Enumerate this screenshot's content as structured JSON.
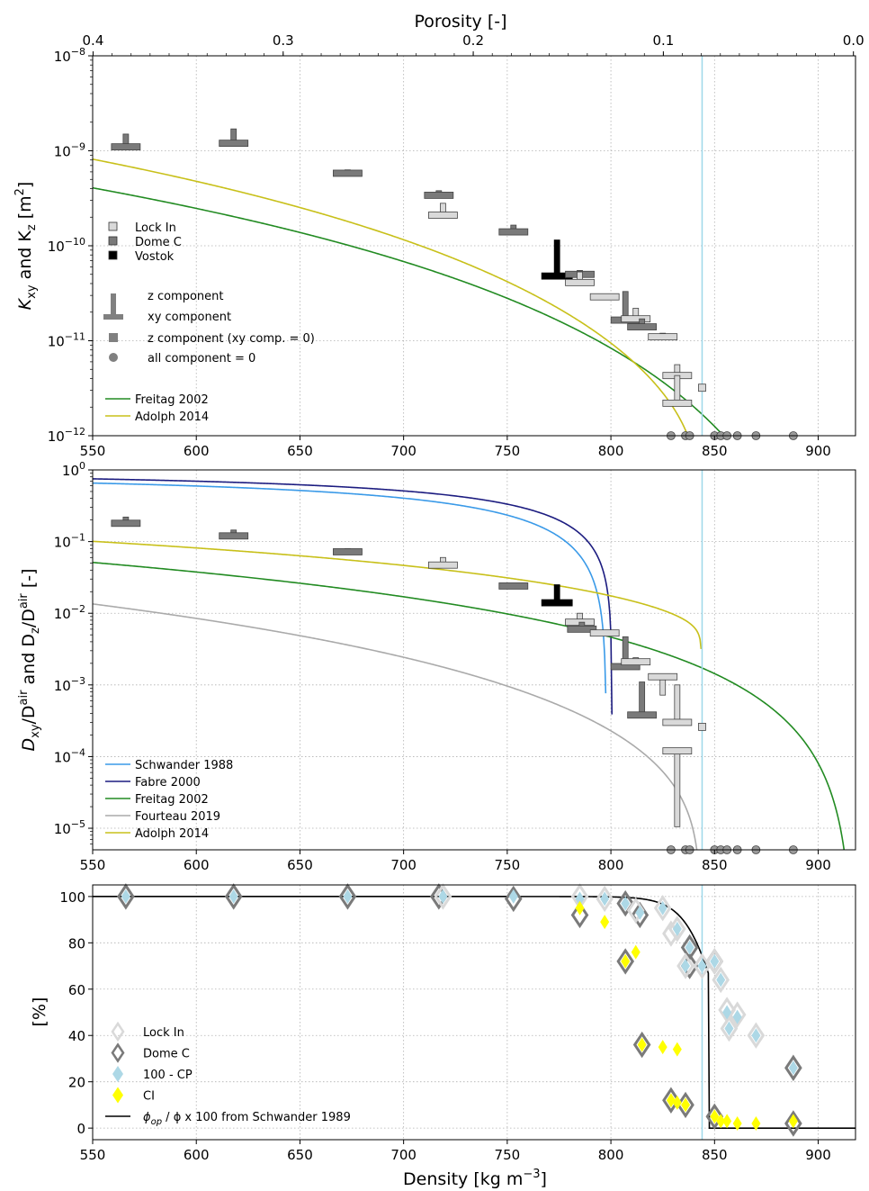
{
  "colors": {
    "lock_in": "#d9d9d9",
    "dome_c": "#7a7a7a",
    "vostok": "#000000",
    "freitag": "#228b22",
    "adolph": "#c8c01a",
    "schwander": "#3a9ae8",
    "fabre": "#1c1c80",
    "fourteau": "#aaaaaa",
    "cp": "#add8e6",
    "ci": "#ffff00",
    "close_off_line": "#9fd8ea"
  },
  "x_axis": {
    "label": "Density [kg m$^{-3}$]",
    "label_text": "Density [kg m",
    "label_sup": "−3",
    "label_end": "]",
    "ticks": [
      "550",
      "600",
      "650",
      "700",
      "750",
      "800",
      "850",
      "900"
    ],
    "range": [
      550,
      918
    ]
  },
  "porosity_axis": {
    "label": "Porosity [-]",
    "ticks": [
      "0.4",
      "0.3",
      "0.2",
      "0.1",
      "0.0"
    ]
  },
  "chart_data": [
    {
      "type": "scatter",
      "panel": "K",
      "ylabel_parts": [
        "K",
        "xy",
        " and K",
        "z",
        " [m",
        "2",
        "]"
      ],
      "yscale": "log",
      "ylim": [
        1e-12,
        1e-08
      ],
      "ytick_labels": [
        [
          "10",
          "−8"
        ],
        [
          "10",
          "−9"
        ],
        [
          "10",
          "−10"
        ],
        [
          "10",
          "−11"
        ],
        [
          "10",
          "−12"
        ]
      ],
      "legend_sites": [
        "Lock In",
        "Dome C",
        "Vostok"
      ],
      "legend_components": [
        "z component",
        "xy component",
        "z component (xy comp. = 0)",
        "all component = 0"
      ],
      "legend_models": [
        "Freitag 2002",
        "Adolph 2014"
      ],
      "tees": [
        {
          "site": "dome_c",
          "density": 566,
          "xy": 1.1e-09,
          "z": 1.5e-09
        },
        {
          "site": "dome_c",
          "density": 618,
          "xy": 1.2e-09,
          "z": 1.7e-09
        },
        {
          "site": "dome_c",
          "density": 673,
          "xy": 5.8e-10,
          "z": 6.3e-10
        },
        {
          "site": "dome_c",
          "density": 717,
          "xy": 3.4e-10,
          "z": 3.8e-10
        },
        {
          "site": "lock_in",
          "density": 719,
          "xy": 2.1e-10,
          "z": 2.8e-10
        },
        {
          "site": "dome_c",
          "density": 753,
          "xy": 1.4e-10,
          "z": 1.65e-10
        },
        {
          "site": "vostok",
          "density": 774,
          "xy": 4.8e-11,
          "z": 1.15e-10
        },
        {
          "site": "dome_c",
          "density": 785,
          "xy": 5e-11,
          "z": 5.5e-11
        },
        {
          "site": "lock_in",
          "density": 785,
          "xy": 4.1e-11,
          "z": 5.3e-11
        },
        {
          "site": "lock_in",
          "density": 797,
          "xy": 2.9e-11,
          "z": 3e-11
        },
        {
          "site": "dome_c",
          "density": 807,
          "xy": 1.65e-11,
          "z": 3.3e-11
        },
        {
          "site": "lock_in",
          "density": 812,
          "xy": 1.7e-11,
          "z": 2.2e-11
        },
        {
          "site": "dome_c",
          "density": 815,
          "xy": 1.4e-11,
          "z": 1.7e-11
        },
        {
          "site": "lock_in",
          "density": 825,
          "xy": 1.1e-11,
          "z": 1.2e-11
        },
        {
          "site": "lock_in",
          "density": 832,
          "xy": 4.3e-12,
          "z": 5.6e-12
        },
        {
          "site": "lock_in",
          "density": 832,
          "xy": 2.2e-12,
          "z": 4.3e-12
        }
      ],
      "squares": [
        {
          "site": "lock_in",
          "density": 844,
          "value": 3.2e-12
        }
      ],
      "zeros": [
        829,
        836,
        838,
        850,
        853,
        856,
        861,
        870,
        888
      ],
      "models": [
        {
          "name": "Freitag 2002",
          "color": "freitag",
          "a": 9.16e-09,
          "b": 3.4
        },
        {
          "name": "Adolph 2014",
          "color": "adolph",
          "a": 2.3e-08,
          "b": 3.5,
          "pc": 0.08,
          "e": 0.6
        }
      ]
    },
    {
      "type": "scatter",
      "panel": "D",
      "ylabel_parts": [
        "D",
        "xy",
        "/D",
        "air",
        " and D",
        "z",
        "/D",
        "air",
        " [-]"
      ],
      "yscale": "log",
      "ylim": [
        5e-06,
        1
      ],
      "ytick_labels": [
        [
          "10",
          "0"
        ],
        [
          "10",
          "−1"
        ],
        [
          "10",
          "−2"
        ],
        [
          "10",
          "−3"
        ],
        [
          "10",
          "−4"
        ],
        [
          "10",
          "−5"
        ]
      ],
      "legend_models": [
        "Schwander 1988",
        "Fabre 2000",
        "Freitag 2002",
        "Fourteau 2019",
        "Adolph 2014"
      ],
      "tees": [
        {
          "site": "dome_c",
          "density": 566,
          "xy": 0.18,
          "z": 0.22
        },
        {
          "site": "dome_c",
          "density": 618,
          "xy": 0.12,
          "z": 0.145
        },
        {
          "site": "dome_c",
          "density": 673,
          "xy": 0.072,
          "z": 0.08
        },
        {
          "site": "lock_in",
          "density": 719,
          "xy": 0.047,
          "z": 0.06
        },
        {
          "site": "dome_c",
          "density": 753,
          "xy": 0.024,
          "z": 0.025
        },
        {
          "site": "vostok",
          "density": 774,
          "xy": 0.014,
          "z": 0.025
        },
        {
          "site": "lock_in",
          "density": 785,
          "xy": 0.0075,
          "z": 0.01
        },
        {
          "site": "dome_c",
          "density": 786,
          "xy": 0.006,
          "z": 0.0075
        },
        {
          "site": "lock_in",
          "density": 797,
          "xy": 0.0053,
          "z": 0.0055
        },
        {
          "site": "dome_c",
          "density": 807,
          "xy": 0.0018,
          "z": 0.0047
        },
        {
          "site": "lock_in",
          "density": 812,
          "xy": 0.0021,
          "z": 0.0024
        },
        {
          "site": "dome_c",
          "density": 815,
          "xy": 0.00038,
          "z": 0.0011
        },
        {
          "site": "lock_in",
          "density": 825,
          "xy": 0.0013,
          "z": 0.00072
        },
        {
          "site": "lock_in",
          "density": 832,
          "xy": 0.0003,
          "z": 0.001
        },
        {
          "site": "lock_in",
          "density": 832,
          "xy": 0.00012,
          "z": 1.05e-05
        }
      ],
      "squares": [
        {
          "site": "lock_in",
          "density": 844,
          "value": 0.00026
        }
      ],
      "zeros": [
        829,
        836,
        838,
        850,
        853,
        856,
        861,
        870,
        888
      ],
      "models": [
        {
          "name": "Schwander 1988",
          "color": "schwander",
          "a": 1.05,
          "pc": 0.13,
          "e": 1.2
        },
        {
          "name": "Fabre 2000",
          "color": "fabre",
          "a": 1.1,
          "pc": 0.127,
          "e": 1.0
        },
        {
          "name": "Freitag 2002",
          "color": "freitag",
          "a": 0.35,
          "b": 2.1
        },
        {
          "name": "Fourteau 2019",
          "color": "fourteau",
          "a": 0.24,
          "b": 2.9,
          "pc": 0.08,
          "e": 1.0
        },
        {
          "name": "Adolph 2014",
          "color": "adolph",
          "a": 0.38,
          "b": 1.4,
          "pc": 0.08,
          "e": 0.2
        }
      ]
    },
    {
      "type": "scatter",
      "panel": "P",
      "ylabel": "[%]",
      "ylim": [
        -5,
        105
      ],
      "yticks": [
        0,
        20,
        40,
        60,
        80,
        100
      ],
      "legend": [
        "Lock In",
        "Dome C",
        "100 - CP",
        "CI",
        "φ_op / φ x 100 from Schwander 1989"
      ],
      "legend_last_parts": [
        "ϕ",
        "op",
        " / ϕ x 100 from Schwander 1989"
      ],
      "series": [
        {
          "name": "Lock In",
          "points": [
            [
              719,
              100
            ],
            [
              785,
              100
            ],
            [
              797,
              99
            ],
            [
              812,
              94
            ],
            [
              825,
              95
            ],
            [
              829,
              84
            ],
            [
              836,
              70
            ],
            [
              861,
              49
            ],
            [
              870,
              40
            ],
            [
              832,
              86
            ],
            [
              844,
              70
            ],
            [
              850,
              72
            ],
            [
              853,
              64
            ],
            [
              856,
              51
            ],
            [
              857,
              43
            ]
          ]
        },
        {
          "name": "Dome C",
          "points": [
            [
              566,
              100
            ],
            [
              618,
              100
            ],
            [
              673,
              100
            ],
            [
              717,
              100
            ],
            [
              753,
              99
            ],
            [
              785,
              92
            ],
            [
              807,
              97
            ],
            [
              807,
              72
            ],
            [
              815,
              36
            ],
            [
              814,
              92
            ],
            [
              829,
              12
            ],
            [
              836,
              10
            ],
            [
              838,
              70
            ],
            [
              838,
              78
            ],
            [
              850,
              72
            ],
            [
              850,
              5
            ],
            [
              888,
              26
            ],
            [
              888,
              2
            ]
          ]
        },
        {
          "name": "100 - CP",
          "points": [
            [
              566,
              100
            ],
            [
              618,
              100
            ],
            [
              673,
              100
            ],
            [
              719,
              100
            ],
            [
              753,
              100
            ],
            [
              785,
              99
            ],
            [
              797,
              99
            ],
            [
              807,
              97
            ],
            [
              814,
              93
            ],
            [
              825,
              95
            ],
            [
              832,
              86
            ],
            [
              836,
              70
            ],
            [
              838,
              78
            ],
            [
              844,
              70
            ],
            [
              850,
              72
            ],
            [
              853,
              64
            ],
            [
              856,
              50
            ],
            [
              857,
              43
            ],
            [
              861,
              48
            ],
            [
              870,
              40
            ],
            [
              888,
              26
            ]
          ]
        },
        {
          "name": "CI",
          "points": [
            [
              785,
              95
            ],
            [
              797,
              89
            ],
            [
              807,
              72
            ],
            [
              812,
              76
            ],
            [
              815,
              36
            ],
            [
              825,
              35
            ],
            [
              832,
              34
            ],
            [
              829,
              12
            ],
            [
              832,
              11
            ],
            [
              836,
              10
            ],
            [
              850,
              5
            ],
            [
              853,
              3
            ],
            [
              856,
              3
            ],
            [
              861,
              2
            ],
            [
              870,
              2
            ],
            [
              888,
              3
            ]
          ]
        }
      ],
      "model_line": {
        "name": "φ_op / φ x 100 from Schwander 1989",
        "pc": 0.07,
        "w": 0.009
      }
    }
  ]
}
